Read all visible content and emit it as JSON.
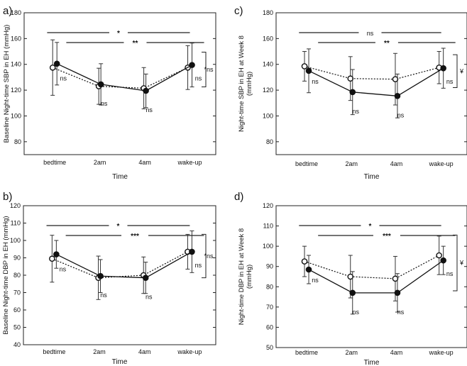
{
  "chart_data": [
    {
      "type": "line",
      "panel_label": "a)",
      "ylabel": "Baseline Night-time SBP in EH (mmHg)",
      "xlabel": "Time",
      "categories": [
        "bedtime",
        "2am",
        "4am",
        "wake-up"
      ],
      "yticks": [
        80,
        100,
        120,
        140,
        160,
        180
      ],
      "ylim": [
        70,
        180
      ],
      "series": [
        {
          "name": "dotted",
          "style": "dotted",
          "marker": "open",
          "values": [
            137.5,
            123,
            121.5,
            137.5
          ],
          "err": [
            21.5,
            14,
            16,
            17
          ]
        },
        {
          "name": "solid",
          "style": "solid",
          "marker": "filled",
          "values": [
            140.5,
            124.5,
            119.5,
            139.5
          ],
          "err": [
            16.5,
            16,
            13,
            17
          ]
        }
      ],
      "ns_labels": [
        "ns",
        "ns",
        "ns",
        "ns"
      ],
      "top_brackets": [
        {
          "label": "*",
          "from": 0,
          "to": 3
        },
        {
          "label": "**",
          "from": 0.5,
          "to": 3.5
        }
      ],
      "side_label": "*ns"
    },
    {
      "type": "line",
      "panel_label": "c)",
      "ylabel": "Night-time SBP in EH at Week 8 (mmHg)",
      "ylabel_lines": [
        "Night-time SBP in EH at Week 8",
        "(mmHg)"
      ],
      "xlabel": "Time",
      "categories": [
        "bedtime",
        "2am",
        "4am",
        "wake-up"
      ],
      "yticks": [
        80,
        100,
        120,
        140,
        160,
        180
      ],
      "ylim": [
        70,
        180
      ],
      "series": [
        {
          "name": "dotted",
          "style": "dotted",
          "marker": "open",
          "values": [
            138.5,
            129,
            128.5,
            137.5
          ],
          "err": [
            11.5,
            17,
            20,
            12.5
          ]
        },
        {
          "name": "solid",
          "style": "solid",
          "marker": "filled",
          "values": [
            135,
            118.5,
            115.5,
            137
          ],
          "err": [
            17,
            17.5,
            17,
            15.5
          ]
        }
      ],
      "ns_labels": [
        "ns",
        "ns",
        "ns",
        "ns"
      ],
      "top_brackets": [
        {
          "label": "ns",
          "from": 0,
          "to": 3
        },
        {
          "label": "**",
          "from": 0.5,
          "to": 3.5
        }
      ],
      "side_label": "¥"
    },
    {
      "type": "line",
      "panel_label": "b)",
      "ylabel": "Baseline Night-time DBP in EH (mmHg)",
      "xlabel": "Time",
      "categories": [
        "bedtime",
        "2am",
        "4am",
        "wake-up"
      ],
      "yticks": [
        40,
        50,
        60,
        70,
        80,
        90,
        100,
        110,
        120
      ],
      "ylim": [
        40,
        120
      ],
      "series": [
        {
          "name": "dotted",
          "style": "dotted",
          "marker": "open",
          "values": [
            89.5,
            78.5,
            80,
            93.5
          ],
          "err": [
            13.5,
            12.5,
            10.5,
            10
          ]
        },
        {
          "name": "solid",
          "style": "solid",
          "marker": "filled",
          "values": [
            92,
            79.5,
            78.5,
            93.5
          ],
          "err": [
            8,
            9.5,
            9,
            12
          ]
        }
      ],
      "ns_labels": [
        "ns",
        "ns",
        "ns",
        "ns"
      ],
      "top_brackets": [
        {
          "label": "*",
          "from": 0,
          "to": 3
        },
        {
          "label": "***",
          "from": 0.5,
          "to": 3.5
        }
      ],
      "side_label": "*ns"
    },
    {
      "type": "line",
      "panel_label": "d)",
      "ylabel": "Night-time DBP in EH at Week 8 (mmHg)",
      "ylabel_lines": [
        "Night-time DBP in EH at Week 8",
        "(mmHg)"
      ],
      "xlabel": "Time",
      "categories": [
        "bedtime",
        "2am",
        "4am",
        "wake-up"
      ],
      "yticks": [
        50,
        60,
        70,
        80,
        90,
        100,
        110,
        120
      ],
      "ylim": [
        50,
        120
      ],
      "series": [
        {
          "name": "dotted",
          "style": "dotted",
          "marker": "open",
          "values": [
            92.5,
            85,
            84,
            95.5
          ],
          "err": [
            7.5,
            10.5,
            11,
            9.5
          ]
        },
        {
          "name": "solid",
          "style": "solid",
          "marker": "filled",
          "values": [
            88.5,
            77,
            77,
            93
          ],
          "err": [
            7,
            10.5,
            9.5,
            7
          ]
        }
      ],
      "ns_labels": [
        "ns",
        "ns",
        "ns",
        "ns"
      ],
      "top_brackets": [
        {
          "label": "*",
          "from": 0,
          "to": 3
        },
        {
          "label": "***",
          "from": 0.5,
          "to": 3.5
        }
      ],
      "side_label": "¥"
    }
  ]
}
